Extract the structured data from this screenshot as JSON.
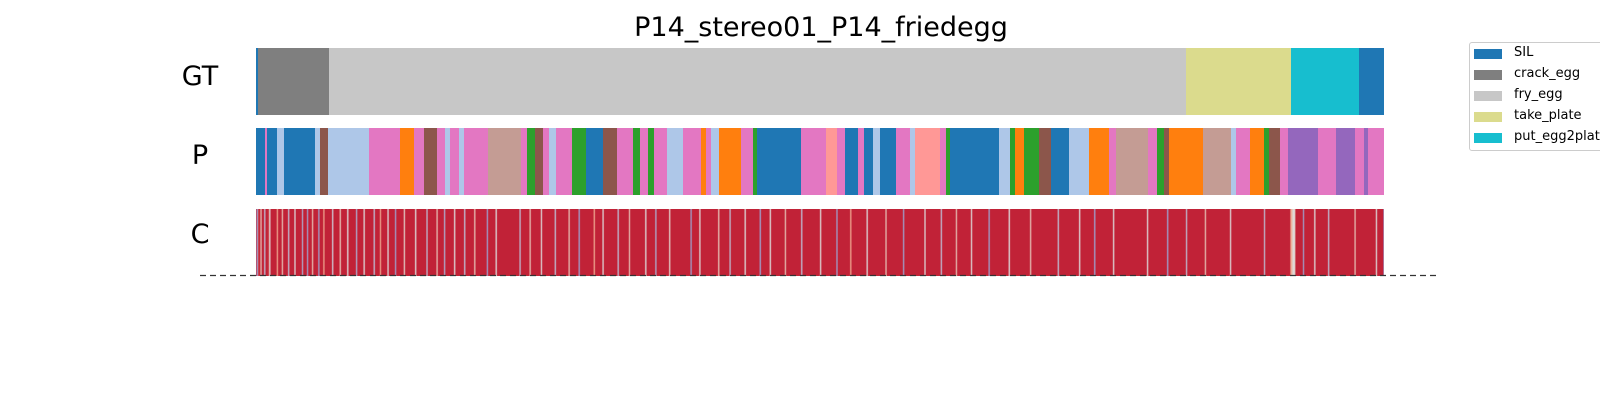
{
  "chart_data": {
    "type": "segmentation-strip",
    "title": "P14_stereo01_P14_friedegg",
    "rows": [
      "GT",
      "P",
      "C"
    ],
    "x_domain": [
      0,
      1128
    ],
    "legend": [
      {
        "label": "SIL",
        "color": "#1f77b4"
      },
      {
        "label": "crack_egg",
        "color": "#7f7f7f"
      },
      {
        "label": "fry_egg",
        "color": "#c7c7c7"
      },
      {
        "label": "take_plate",
        "color": "#dbdb8d"
      },
      {
        "label": "put_egg2plate",
        "color": "#17becf"
      }
    ],
    "gt_segments": [
      {
        "label": "SIL",
        "start": 0,
        "end": 2,
        "color": "#1f77b4"
      },
      {
        "label": "crack_egg",
        "start": 2,
        "end": 73,
        "color": "#7f7f7f"
      },
      {
        "label": "fry_egg",
        "start": 73,
        "end": 930,
        "color": "#c7c7c7"
      },
      {
        "label": "take_plate",
        "start": 930,
        "end": 1035,
        "color": "#dbdb8d"
      },
      {
        "label": "put_egg2plate",
        "start": 1035,
        "end": 1103,
        "color": "#17becf"
      },
      {
        "label": "SIL",
        "start": 1103,
        "end": 1128,
        "color": "#1f77b4"
      }
    ],
    "pred_segments": [
      {
        "start": 0,
        "end": 9,
        "color": "#1f77b4"
      },
      {
        "start": 9,
        "end": 11,
        "color": "#e377c2"
      },
      {
        "start": 11,
        "end": 21,
        "color": "#1f77b4"
      },
      {
        "start": 21,
        "end": 28,
        "color": "#aec7e8"
      },
      {
        "start": 28,
        "end": 59,
        "color": "#1f77b4"
      },
      {
        "start": 59,
        "end": 64,
        "color": "#aec7e8"
      },
      {
        "start": 64,
        "end": 72,
        "color": "#8c564b"
      },
      {
        "start": 72,
        "end": 78,
        "color": "#aec7e8"
      },
      {
        "start": 78,
        "end": 113,
        "color": "#aec7e8"
      },
      {
        "start": 113,
        "end": 144,
        "color": "#e377c2"
      },
      {
        "start": 144,
        "end": 158,
        "color": "#ff7f0e"
      },
      {
        "start": 158,
        "end": 168,
        "color": "#e377c2"
      },
      {
        "start": 168,
        "end": 181,
        "color": "#8c564b"
      },
      {
        "start": 181,
        "end": 189,
        "color": "#e377c2"
      },
      {
        "start": 189,
        "end": 194,
        "color": "#aec7e8"
      },
      {
        "start": 194,
        "end": 203,
        "color": "#e377c2"
      },
      {
        "start": 203,
        "end": 208,
        "color": "#aec7e8"
      },
      {
        "start": 208,
        "end": 232,
        "color": "#e377c2"
      },
      {
        "start": 232,
        "end": 265,
        "color": "#c49c94"
      },
      {
        "start": 265,
        "end": 271,
        "color": "#e377c2"
      },
      {
        "start": 271,
        "end": 279,
        "color": "#2ca02c"
      },
      {
        "start": 279,
        "end": 287,
        "color": "#8c564b"
      },
      {
        "start": 287,
        "end": 293,
        "color": "#e377c2"
      },
      {
        "start": 293,
        "end": 300,
        "color": "#aec7e8"
      },
      {
        "start": 300,
        "end": 316,
        "color": "#e377c2"
      },
      {
        "start": 316,
        "end": 330,
        "color": "#2ca02c"
      },
      {
        "start": 330,
        "end": 347,
        "color": "#1f77b4"
      },
      {
        "start": 347,
        "end": 361,
        "color": "#8c564b"
      },
      {
        "start": 361,
        "end": 377,
        "color": "#e377c2"
      },
      {
        "start": 377,
        "end": 384,
        "color": "#2ca02c"
      },
      {
        "start": 384,
        "end": 392,
        "color": "#e377c2"
      },
      {
        "start": 392,
        "end": 398,
        "color": "#2ca02c"
      },
      {
        "start": 398,
        "end": 411,
        "color": "#e377c2"
      },
      {
        "start": 411,
        "end": 427,
        "color": "#aec7e8"
      },
      {
        "start": 427,
        "end": 445,
        "color": "#e377c2"
      },
      {
        "start": 445,
        "end": 450,
        "color": "#ff7f0e"
      },
      {
        "start": 450,
        "end": 455,
        "color": "#e377c2"
      },
      {
        "start": 455,
        "end": 463,
        "color": "#aec7e8"
      },
      {
        "start": 463,
        "end": 485,
        "color": "#ff7f0e"
      },
      {
        "start": 485,
        "end": 497,
        "color": "#e377c2"
      },
      {
        "start": 497,
        "end": 501,
        "color": "#2ca02c"
      },
      {
        "start": 501,
        "end": 545,
        "color": "#1f77b4"
      },
      {
        "start": 545,
        "end": 570,
        "color": "#e377c2"
      },
      {
        "start": 570,
        "end": 581,
        "color": "#ff9896"
      },
      {
        "start": 581,
        "end": 589,
        "color": "#e377c2"
      },
      {
        "start": 589,
        "end": 602,
        "color": "#1f77b4"
      },
      {
        "start": 602,
        "end": 608,
        "color": "#e377c2"
      },
      {
        "start": 608,
        "end": 617,
        "color": "#1f77b4"
      },
      {
        "start": 617,
        "end": 624,
        "color": "#aec7e8"
      },
      {
        "start": 624,
        "end": 640,
        "color": "#1f77b4"
      },
      {
        "start": 640,
        "end": 654,
        "color": "#e377c2"
      },
      {
        "start": 654,
        "end": 659,
        "color": "#aec7e8"
      },
      {
        "start": 659,
        "end": 684,
        "color": "#ff9896"
      },
      {
        "start": 684,
        "end": 690,
        "color": "#e377c2"
      },
      {
        "start": 690,
        "end": 694,
        "color": "#2ca02c"
      },
      {
        "start": 694,
        "end": 743,
        "color": "#1f77b4"
      },
      {
        "start": 743,
        "end": 754,
        "color": "#aec7e8"
      },
      {
        "start": 754,
        "end": 759,
        "color": "#2ca02c"
      },
      {
        "start": 759,
        "end": 768,
        "color": "#ff7f0e"
      },
      {
        "start": 768,
        "end": 783,
        "color": "#2ca02c"
      },
      {
        "start": 783,
        "end": 795,
        "color": "#8c564b"
      },
      {
        "start": 795,
        "end": 813,
        "color": "#1f77b4"
      },
      {
        "start": 813,
        "end": 833,
        "color": "#aec7e8"
      },
      {
        "start": 833,
        "end": 853,
        "color": "#ff7f0e"
      },
      {
        "start": 853,
        "end": 860,
        "color": "#e377c2"
      },
      {
        "start": 860,
        "end": 892,
        "color": "#c49c94"
      },
      {
        "start": 892,
        "end": 901,
        "color": "#e377c2"
      },
      {
        "start": 901,
        "end": 908,
        "color": "#2ca02c"
      },
      {
        "start": 908,
        "end": 913,
        "color": "#8c564b"
      },
      {
        "start": 913,
        "end": 947,
        "color": "#ff7f0e"
      },
      {
        "start": 947,
        "end": 975,
        "color": "#c49c94"
      },
      {
        "start": 975,
        "end": 980,
        "color": "#aec7e8"
      },
      {
        "start": 980,
        "end": 994,
        "color": "#e377c2"
      },
      {
        "start": 994,
        "end": 1008,
        "color": "#ff7f0e"
      },
      {
        "start": 1008,
        "end": 1013,
        "color": "#2ca02c"
      },
      {
        "start": 1013,
        "end": 1024,
        "color": "#8c564b"
      },
      {
        "start": 1024,
        "end": 1032,
        "color": "#e377c2"
      },
      {
        "start": 1032,
        "end": 1062,
        "color": "#9467bd"
      },
      {
        "start": 1062,
        "end": 1080,
        "color": "#e377c2"
      },
      {
        "start": 1080,
        "end": 1099,
        "color": "#9467bd"
      },
      {
        "start": 1099,
        "end": 1108,
        "color": "#e377c2"
      },
      {
        "start": 1108,
        "end": 1112,
        "color": "#9467bd"
      },
      {
        "start": 1112,
        "end": 1128,
        "color": "#e377c2"
      }
    ],
    "confidence": [
      0.95,
      0.3,
      0.9,
      0.95,
      0.6,
      0.95,
      0.95,
      0.4,
      0.95,
      0.95,
      0.9,
      0.5,
      0.95,
      0.95,
      0.95,
      0.95,
      0.95,
      0.7,
      0.95,
      0.95,
      0.95,
      0.6,
      0.95,
      0.95,
      0.95,
      0.95,
      0.4,
      0.95,
      0.95,
      0.95,
      0.95,
      0.5,
      0.95,
      0.95,
      0.95,
      0.95,
      0.95,
      0.35,
      0.95,
      0.95,
      0.95,
      0.3,
      0.95,
      0.95,
      0.95,
      0.6,
      0.95,
      0.95,
      0.95,
      0.95,
      0.3,
      0.95,
      0.95,
      0.95,
      0.7,
      0.95,
      0.95,
      0.95,
      0.95,
      0.95,
      0.95,
      0.45,
      0.95,
      0.95,
      0.95,
      0.95,
      0.95,
      0.6,
      0.95,
      0.95,
      0.95,
      0.95,
      0.95,
      0.5,
      0.95,
      0.95,
      0.95,
      0.95,
      0.95,
      0.95,
      0.35,
      0.95,
      0.95,
      0.95,
      0.95,
      0.95,
      0.5,
      0.95,
      0.95,
      0.95,
      0.95,
      0.95,
      0.95,
      0.95,
      0.4,
      0.95,
      0.95,
      0.95,
      0.95,
      0.7,
      0.95,
      0.95,
      0.95,
      0.95,
      0.95,
      0.5,
      0.95,
      0.95,
      0.95,
      0.95,
      0.95,
      0.3,
      0.95,
      0.95,
      0.95,
      0.95,
      0.95,
      0.95,
      0.55,
      0.95,
      0.95,
      0.95,
      0.95,
      0.95,
      0.95,
      0.95,
      0.95,
      0.5,
      0.95,
      0.95,
      0.95,
      0.95,
      0.95,
      0.95,
      0.95,
      0.95,
      0.4,
      0.95,
      0.95,
      0.95,
      0.95,
      0.95,
      0.95,
      0.95,
      0.6,
      0.95,
      0.95,
      0.95,
      0.95,
      0.95,
      0.35,
      0.95,
      0.95,
      0.95,
      0.95,
      0.95,
      0.95,
      0.95,
      0.5,
      0.95,
      0.95,
      0.95,
      0.95,
      0.95,
      0.95,
      0.95,
      0.4,
      0.95,
      0.95,
      0.95,
      0.95,
      0.95,
      0.95,
      0.95,
      0.6,
      0.95,
      0.95,
      0.95,
      0.95,
      0.95,
      0.95,
      0.95,
      0.95,
      0.95,
      0.3,
      0.95,
      0.95,
      0.95,
      0.95,
      0.95,
      0.95,
      0.5,
      0.95,
      0.95,
      0.95,
      0.95,
      0.95,
      0.95,
      0.95,
      0.95,
      0.95,
      0.95,
      0.95,
      0.95,
      0.95,
      0.95,
      0.95,
      0.95,
      0.95,
      0.95,
      0.4,
      0.95,
      0.95,
      0.95,
      0.95,
      0.95,
      0.95,
      0.95,
      0.6,
      0.95,
      0.95,
      0.95,
      0.95,
      0.95,
      0.95,
      0.95,
      0.95,
      0.5,
      0.95,
      0.95,
      0.95,
      0.95,
      0.95,
      0.95,
      0.95,
      0.95,
      0.95,
      0.95,
      0.4,
      0.95,
      0.95,
      0.95,
      0.95,
      0.95,
      0.95,
      0.95,
      0.95,
      0.95,
      0.95,
      0.6,
      0.95,
      0.95,
      0.95,
      0.95,
      0.95,
      0.95,
      0.95,
      0.3,
      0.95,
      0.95,
      0.95,
      0.95,
      0.95,
      0.95,
      0.95,
      0.95,
      0.95,
      0.95,
      0.95,
      0.7,
      0.95,
      0.95,
      0.95,
      0.95,
      0.95,
      0.95,
      0.5,
      0.95,
      0.95,
      0.95,
      0.95,
      0.95,
      0.95,
      0.95,
      0.95,
      0.95,
      0.95,
      0.95,
      0.4,
      0.95,
      0.95,
      0.95,
      0.95,
      0.95,
      0.95,
      0.95,
      0.95,
      0.6,
      0.95,
      0.95,
      0.95,
      0.95,
      0.95,
      0.95,
      0.95,
      0.95,
      0.95,
      0.95,
      0.95,
      0.95,
      0.5,
      0.95,
      0.95,
      0.95,
      0.95,
      0.95,
      0.95,
      0.95,
      0.35,
      0.95,
      0.95,
      0.95,
      0.95,
      0.95,
      0.95,
      0.95,
      0.95,
      0.95,
      0.95,
      0.55,
      0.95,
      0.95,
      0.95,
      0.95,
      0.95,
      0.95,
      0.95,
      0.95,
      0.95,
      0.95,
      0.95,
      0.95,
      0.95,
      0.95,
      0.95,
      0.95,
      0.3,
      0.95,
      0.95,
      0.95,
      0.95,
      0.95,
      0.95,
      0.5,
      0.95,
      0.95,
      0.95,
      0.95,
      0.95,
      0.95,
      0.95,
      0.95,
      0.95,
      0.95,
      0.95,
      0.95,
      0.95,
      0.95,
      0.6,
      0.95,
      0.95,
      0.95,
      0.95,
      0.95,
      0.95,
      0.95,
      0.95,
      0.4,
      0.95,
      0.95,
      0.95,
      0.95,
      0.95,
      0.95,
      0.95,
      0.95,
      0.95,
      0.95,
      0.95,
      0.5,
      0.95,
      0.95,
      0.95,
      0.95,
      0.95,
      0.95,
      0.95,
      0.95,
      0.95,
      0.95,
      0.95,
      0.3,
      0.95,
      0.95,
      0.95,
      0.95,
      0.95,
      0.95,
      0.95,
      0.5,
      0.95,
      0.95,
      0.95,
      0.95,
      0.95,
      0.95,
      0.95,
      0.95,
      0.95,
      0.95,
      0.95,
      0.6,
      0.95,
      0.95,
      0.95,
      0.95,
      0.95,
      0.95,
      0.95,
      0.95,
      0.95,
      0.95,
      0.95,
      0.95,
      0.4,
      0.95,
      0.95,
      0.95,
      0.95,
      0.95,
      0.95,
      0.95,
      0.95,
      0.95,
      0.95,
      0.95,
      0.95,
      0.95,
      0.95,
      0.5,
      0.95,
      0.95,
      0.95,
      0.95,
      0.95,
      0.95,
      0.95,
      0.95,
      0.95,
      0.95,
      0.95,
      0.95,
      0.3,
      0.95,
      0.95,
      0.95,
      0.95,
      0.95,
      0.95,
      0.95,
      0.95,
      0.95,
      0.95,
      0.7,
      0.95,
      0.95,
      0.95,
      0.95,
      0.95,
      0.95,
      0.95,
      0.95,
      0.95,
      0.95,
      0.95,
      0.95,
      0.5,
      0.95,
      0.95,
      0.95,
      0.95,
      0.95,
      0.95,
      0.95,
      0.95,
      0.95,
      0.95,
      0.95,
      0.95,
      0.95,
      0.95,
      0.6,
      0.95,
      0.95,
      0.95,
      0.95,
      0.95,
      0.95,
      0.95,
      0.95,
      0.95,
      0.95,
      0.95,
      0.95,
      0.95,
      0.3,
      0.95,
      0.95,
      0.95,
      0.95,
      0.95,
      0.95,
      0.95,
      0.95,
      0.95,
      0.95,
      0.95,
      0.95,
      0.95,
      0.95,
      0.95,
      0.95,
      0.5,
      0.95,
      0.95,
      0.95,
      0.95,
      0.95,
      0.95,
      0.95,
      0.95,
      0.95,
      0.95,
      0.95,
      0.95,
      0.4,
      0.95,
      0.95,
      0.95,
      0.95,
      0.95,
      0.95,
      0.95,
      0.95,
      0.95,
      0.95,
      0.95,
      0.6,
      0.95,
      0.95,
      0.95,
      0.95,
      0.95,
      0.95,
      0.95,
      0.95,
      0.95,
      0.95,
      0.95,
      0.5,
      0.95,
      0.95,
      0.95,
      0.95,
      0.95,
      0.95,
      0.95,
      0.95,
      0.95,
      0.95,
      0.95,
      0.95,
      0.95,
      0.3,
      0.95,
      0.95,
      0.95,
      0.95,
      0.95,
      0.95,
      0.95,
      0.95,
      0.95,
      0.95,
      0.95,
      0.95,
      0.95,
      0.95,
      0.95,
      0.5,
      0.95,
      0.95,
      0.95,
      0.95,
      0.95,
      0.95,
      0.95,
      0.95,
      0.95,
      0.95,
      0.95,
      0.95,
      0.95,
      0.95,
      0.95,
      0.95,
      0.6,
      0.95,
      0.95,
      0.95,
      0.95,
      0.95,
      0.95,
      0.95,
      0.95,
      0.95,
      0.95,
      0.95,
      0.95,
      0.95,
      0.95,
      0.95,
      0.95,
      0.95,
      0.95,
      0.95,
      0.95,
      0.95,
      0.4,
      0.95,
      0.95,
      0.95,
      0.95,
      0.95,
      0.95,
      0.95,
      0.95,
      0.95,
      0.95,
      0.95,
      0.95,
      0.95,
      0.95,
      0.95,
      0.95,
      0.5,
      0.95,
      0.95,
      0.95,
      0.95,
      0.95,
      0.95,
      0.95,
      0.95,
      0.95,
      0.95,
      0.95,
      0.3,
      0.95,
      0.95,
      0.95,
      0.95,
      0.95,
      0.95,
      0.95,
      0.95,
      0.95,
      0.95,
      0.95,
      0.95,
      0.95,
      0.95,
      0.5,
      0.95,
      0.95,
      0.95,
      0.95,
      0.95,
      0.95,
      0.95,
      0.95,
      0.95,
      0.95,
      0.95,
      0.95,
      0.95,
      0.95,
      0.95,
      0.95,
      0.95,
      0.95,
      0.95,
      0.95,
      0.95,
      0.95,
      0.95,
      0.95,
      0.95,
      0.95,
      0.5,
      0.95,
      0.95,
      0.95,
      0.95,
      0.95,
      0.95,
      0.95,
      0.95,
      0.95,
      0.95,
      0.95,
      0.95,
      0.95,
      0.95,
      0.95,
      0.3,
      0.95,
      0.95,
      0.95,
      0.95,
      0.95,
      0.95,
      0.95,
      0.95,
      0.95,
      0.95,
      0.95,
      0.95,
      0.95,
      0.95,
      0.4,
      0.95,
      0.95,
      0.95,
      0.95,
      0.95,
      0.95,
      0.95,
      0.95,
      0.95,
      0.95,
      0.95,
      0.95,
      0.95,
      0.95,
      0.6,
      0.95,
      0.95,
      0.95,
      0.95,
      0.95,
      0.95,
      0.95,
      0.95,
      0.95,
      0.95,
      0.95,
      0.95,
      0.95,
      0.95,
      0.95,
      0.95,
      0.95,
      0.95,
      0.95,
      0.5,
      0.95,
      0.95,
      0.95,
      0.95,
      0.95,
      0.95,
      0.95,
      0.95,
      0.95,
      0.95,
      0.95,
      0.95,
      0.95,
      0.95,
      0.95,
      0.95,
      0.95,
      0.95,
      0.95,
      0.95,
      0.95,
      0.95,
      0.95,
      0.95,
      0.95,
      0.95,
      0.4,
      0.95,
      0.95,
      0.95,
      0.95,
      0.95,
      0.95,
      0.95,
      0.95,
      0.95,
      0.95,
      0.95,
      0.95,
      0.95,
      0.95,
      0.95,
      0.95,
      0.95,
      0.95,
      0.95,
      0.95,
      0.7,
      0.6,
      0.5,
      0.55,
      0.95,
      0.95,
      0.95,
      0.95,
      0.95,
      0.95,
      0.3,
      0.95,
      0.95,
      0.95,
      0.95,
      0.95,
      0.95,
      0.95,
      0.95,
      0.5,
      0.95,
      0.95,
      0.95,
      0.95,
      0.95,
      0.95,
      0.95,
      0.95,
      0.95,
      0.95,
      0.4,
      0.95,
      0.95,
      0.95,
      0.95,
      0.95,
      0.95,
      0.95,
      0.95,
      0.95,
      0.95,
      0.95,
      0.95,
      0.95,
      0.95,
      0.95,
      0.95,
      0.95,
      0.95,
      0.95,
      0.95,
      0.6,
      0.95,
      0.95,
      0.95,
      0.95,
      0.95,
      0.95,
      0.95,
      0.95,
      0.95,
      0.95,
      0.95,
      0.95,
      0.95,
      0.95,
      0.95,
      0.95,
      0.5,
      0.95,
      0.95,
      0.95,
      0.95,
      0.95,
      0.3
    ]
  }
}
